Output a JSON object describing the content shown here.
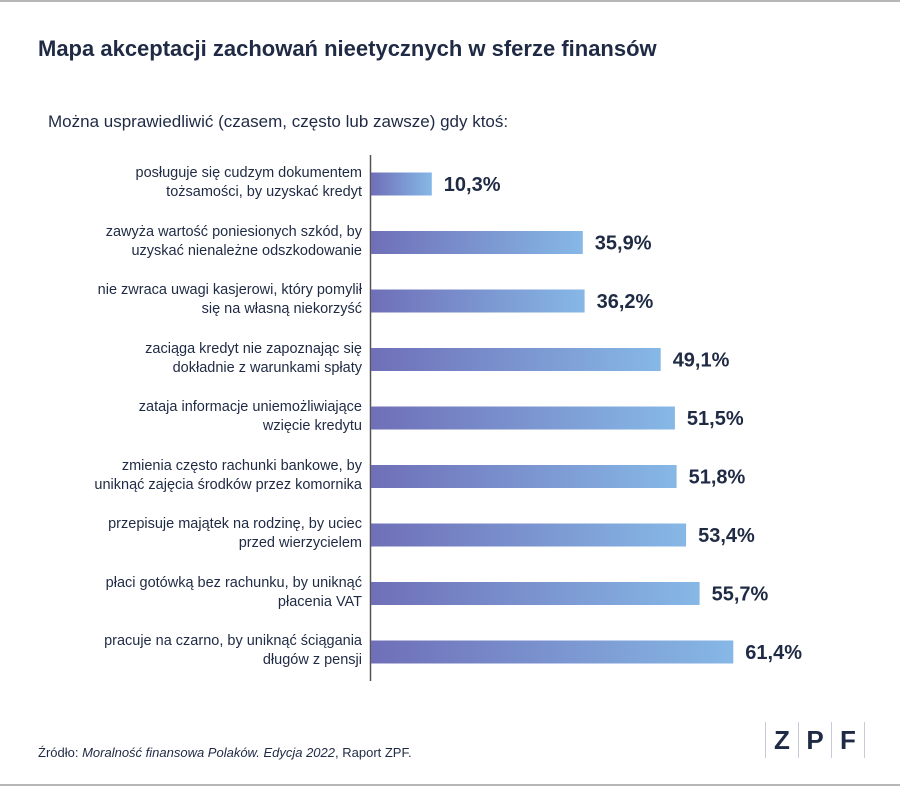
{
  "title": "Mapa akceptacji zachowań nieetycznych w sferze finansów",
  "subtitle": "Można usprawiedliwić (czasem, często lub zawsze) gdy ktoś:",
  "colors": {
    "text": "#1f2a44",
    "bar_start": "#6f6fb8",
    "bar_end": "#86b8e6",
    "axis": "#555555"
  },
  "chart_data": {
    "type": "bar",
    "orientation": "horizontal",
    "categories": [
      [
        "posługuje się cudzym dokumentem",
        "tożsamości, by uzyskać kredyt"
      ],
      [
        "zawyża wartość poniesionych szkód, by",
        "uzyskać nienależne odszkodowanie"
      ],
      [
        "nie zwraca uwagi kasjerowi, który pomylił",
        "się na własną niekorzyść"
      ],
      [
        "zaciąga kredyt nie zapoznając się",
        "dokładnie z warunkami spłaty"
      ],
      [
        "zataja informacje uniemożliwiające",
        "wzięcie kredytu"
      ],
      [
        "zmienia często rachunki bankowe, by",
        "uniknąć zajęcia środków przez komornika"
      ],
      [
        "przepisuje majątek na rodzinę, by uciec",
        "przed wierzycielem"
      ],
      [
        "płaci gotówką bez rachunku, by uniknąć",
        "płacenia VAT"
      ],
      [
        "pracuje na czarno, by uniknąć ściągania",
        "długów z pensji"
      ]
    ],
    "values": [
      10.3,
      35.9,
      36.2,
      49.1,
      51.5,
      51.8,
      53.4,
      55.7,
      61.4
    ],
    "value_labels": [
      "10,3%",
      "35,9%",
      "36,2%",
      "49,1%",
      "51,5%",
      "51,8%",
      "53,4%",
      "55,7%",
      "61,4%"
    ],
    "grid": false,
    "legend": "none"
  },
  "footer": {
    "source_prefix": "Źródło: ",
    "source_title": "Moralność finansowa Polaków. Edycja 2022",
    "source_suffix": ", Raport ZPF."
  },
  "logo": {
    "letters": [
      "Z",
      "P",
      "F"
    ]
  }
}
